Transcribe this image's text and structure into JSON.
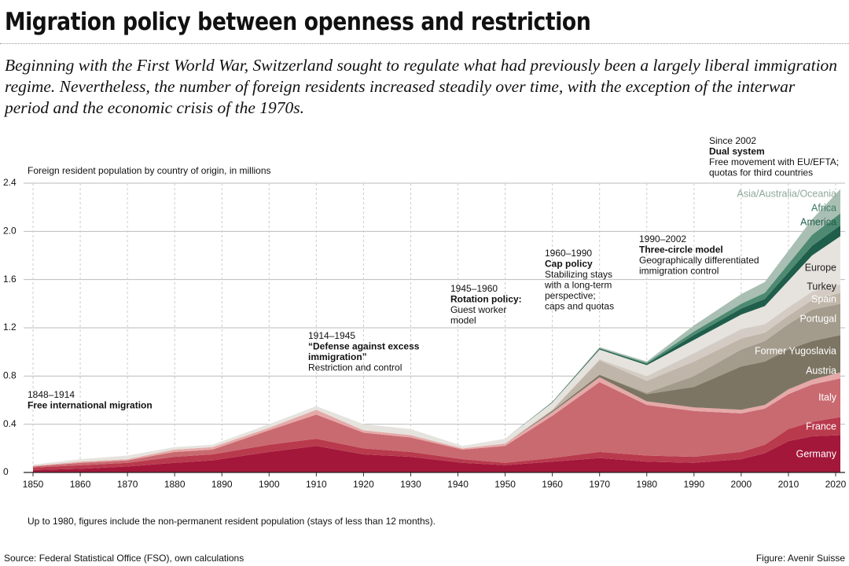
{
  "chart_data": {
    "type": "stacked_area",
    "title": "Migration policy between openness and restriction",
    "subtitle": "Beginning with the First World War, Switzerland sought to regulate what had previously been a largely liberal immigration regime. Nevertheless, the number of foreign residents increased steadily over time, with the exception of the interwar period and the economic crisis of the 1970s.",
    "y_label": "Foreign resident population by country of origin, in millions",
    "note": "Up to 1980, figures include the non-permanent resident population (stays of less than 12 months).",
    "source": "Source: Federal Statistical Office (FSO), own calculations",
    "credit": "Figure: Avenir Suisse",
    "x": [
      1850,
      1860,
      1870,
      1880,
      1888,
      1900,
      1910,
      1920,
      1930,
      1941,
      1950,
      1960,
      1970,
      1980,
      1990,
      2000,
      2005,
      2010,
      2015,
      2021
    ],
    "xlim": [
      1848,
      2022
    ],
    "xticks": [
      1850,
      1860,
      1870,
      1880,
      1890,
      1900,
      1910,
      1920,
      1930,
      1940,
      1950,
      1960,
      1970,
      1980,
      1990,
      2000,
      2010,
      2020
    ],
    "ylim": [
      0,
      2.4
    ],
    "yticks": [
      0,
      0.4,
      0.8,
      1.2,
      1.6,
      {
        "value": 2,
        "label": "2.0"
      },
      2.4
    ],
    "grid": true,
    "series": [
      {
        "name": "Germany",
        "color": "#a3173a",
        "values": [
          0.02,
          0.03,
          0.05,
          0.08,
          0.1,
          0.17,
          0.22,
          0.15,
          0.13,
          0.08,
          0.06,
          0.09,
          0.12,
          0.09,
          0.08,
          0.11,
          0.16,
          0.26,
          0.3,
          0.31
        ]
      },
      {
        "name": "France",
        "color": "#b93a4d",
        "values": [
          0.02,
          0.03,
          0.03,
          0.05,
          0.05,
          0.06,
          0.06,
          0.05,
          0.04,
          0.03,
          0.02,
          0.03,
          0.05,
          0.05,
          0.05,
          0.06,
          0.07,
          0.1,
          0.12,
          0.15
        ]
      },
      {
        "name": "Italy",
        "color": "#c96a70",
        "values": [
          0.01,
          0.02,
          0.02,
          0.04,
          0.04,
          0.12,
          0.2,
          0.13,
          0.12,
          0.08,
          0.14,
          0.35,
          0.58,
          0.42,
          0.38,
          0.32,
          0.3,
          0.29,
          0.31,
          0.32
        ]
      },
      {
        "name": "Austria",
        "color": "#e5a9a8",
        "values": [
          0.005,
          0.01,
          0.01,
          0.02,
          0.02,
          0.02,
          0.04,
          0.02,
          0.02,
          0.01,
          0.02,
          0.03,
          0.04,
          0.03,
          0.03,
          0.03,
          0.03,
          0.04,
          0.04,
          0.05
        ]
      },
      {
        "name": "Former Yugoslavia",
        "color": "#7d7563",
        "values": [
          0,
          0,
          0,
          0,
          0,
          0,
          0,
          0,
          0,
          0,
          0,
          0.01,
          0.02,
          0.06,
          0.17,
          0.36,
          0.36,
          0.33,
          0.32,
          0.31
        ]
      },
      {
        "name": "Portugal",
        "color": "#a39b8c",
        "values": [
          0,
          0,
          0,
          0,
          0,
          0,
          0,
          0,
          0,
          0,
          0,
          0,
          0,
          0.01,
          0.09,
          0.14,
          0.17,
          0.21,
          0.26,
          0.26
        ]
      },
      {
        "name": "Spain",
        "color": "#bfb5a8",
        "values": [
          0,
          0,
          0,
          0,
          0,
          0,
          0,
          0,
          0,
          0,
          0,
          0.01,
          0.12,
          0.1,
          0.12,
          0.09,
          0.07,
          0.07,
          0.08,
          0.09
        ]
      },
      {
        "name": "Turkey",
        "color": "#d4ccc4",
        "values": [
          0,
          0,
          0,
          0,
          0,
          0,
          0,
          0,
          0,
          0,
          0,
          0,
          0.01,
          0.04,
          0.07,
          0.08,
          0.07,
          0.07,
          0.07,
          0.07
        ]
      },
      {
        "name": "Europe",
        "color": "#e6e3de",
        "values": [
          0.01,
          0.02,
          0.03,
          0.02,
          0.02,
          0.03,
          0.03,
          0.05,
          0.05,
          0.02,
          0.04,
          0.06,
          0.08,
          0.09,
          0.11,
          0.12,
          0.15,
          0.22,
          0.3,
          0.4
        ]
      },
      {
        "name": "America",
        "color": "#1f5e4b",
        "values": [
          0,
          0,
          0,
          0,
          0,
          0,
          0,
          0,
          0,
          0,
          0,
          0.005,
          0.01,
          0.01,
          0.04,
          0.05,
          0.06,
          0.07,
          0.08,
          0.09
        ]
      },
      {
        "name": "Africa",
        "color": "#4e8a72",
        "values": [
          0,
          0,
          0,
          0,
          0,
          0,
          0,
          0,
          0,
          0,
          0,
          0,
          0,
          0.01,
          0.03,
          0.04,
          0.05,
          0.07,
          0.09,
          0.1
        ]
      },
      {
        "name": "Asia/Australia/Oceania",
        "color": "#a9bfb3",
        "values": [
          0,
          0,
          0,
          0,
          0,
          0,
          0,
          0,
          0,
          0,
          0,
          0,
          0.01,
          0.01,
          0.05,
          0.08,
          0.09,
          0.11,
          0.13,
          0.2
        ]
      }
    ],
    "annotations": [
      {
        "period": "1848–1914",
        "policy": [
          "Free international migration"
        ],
        "detail": []
      },
      {
        "period": "1914–1945",
        "policy": [
          "“Defense against excess",
          " immigration”"
        ],
        "detail": [
          "Restriction and control"
        ]
      },
      {
        "period": "1945–1960",
        "policy": [
          "Rotation policy:"
        ],
        "detail": [
          "Guest worker",
          "model"
        ]
      },
      {
        "period": "1960–1990",
        "policy": [
          "Cap policy"
        ],
        "detail": [
          "Stabilizing stays",
          "with a long-term",
          "perspective;",
          "caps and quotas"
        ]
      },
      {
        "period": "1990–2002",
        "policy": [
          "Three-circle model"
        ],
        "detail": [
          "Geographically differentiated",
          "immigration control"
        ]
      },
      {
        "period": "Since 2002",
        "policy": [
          "Dual system"
        ],
        "detail": [
          "Free movement with EU/EFTA;",
          "quotas for third countries"
        ]
      }
    ]
  }
}
